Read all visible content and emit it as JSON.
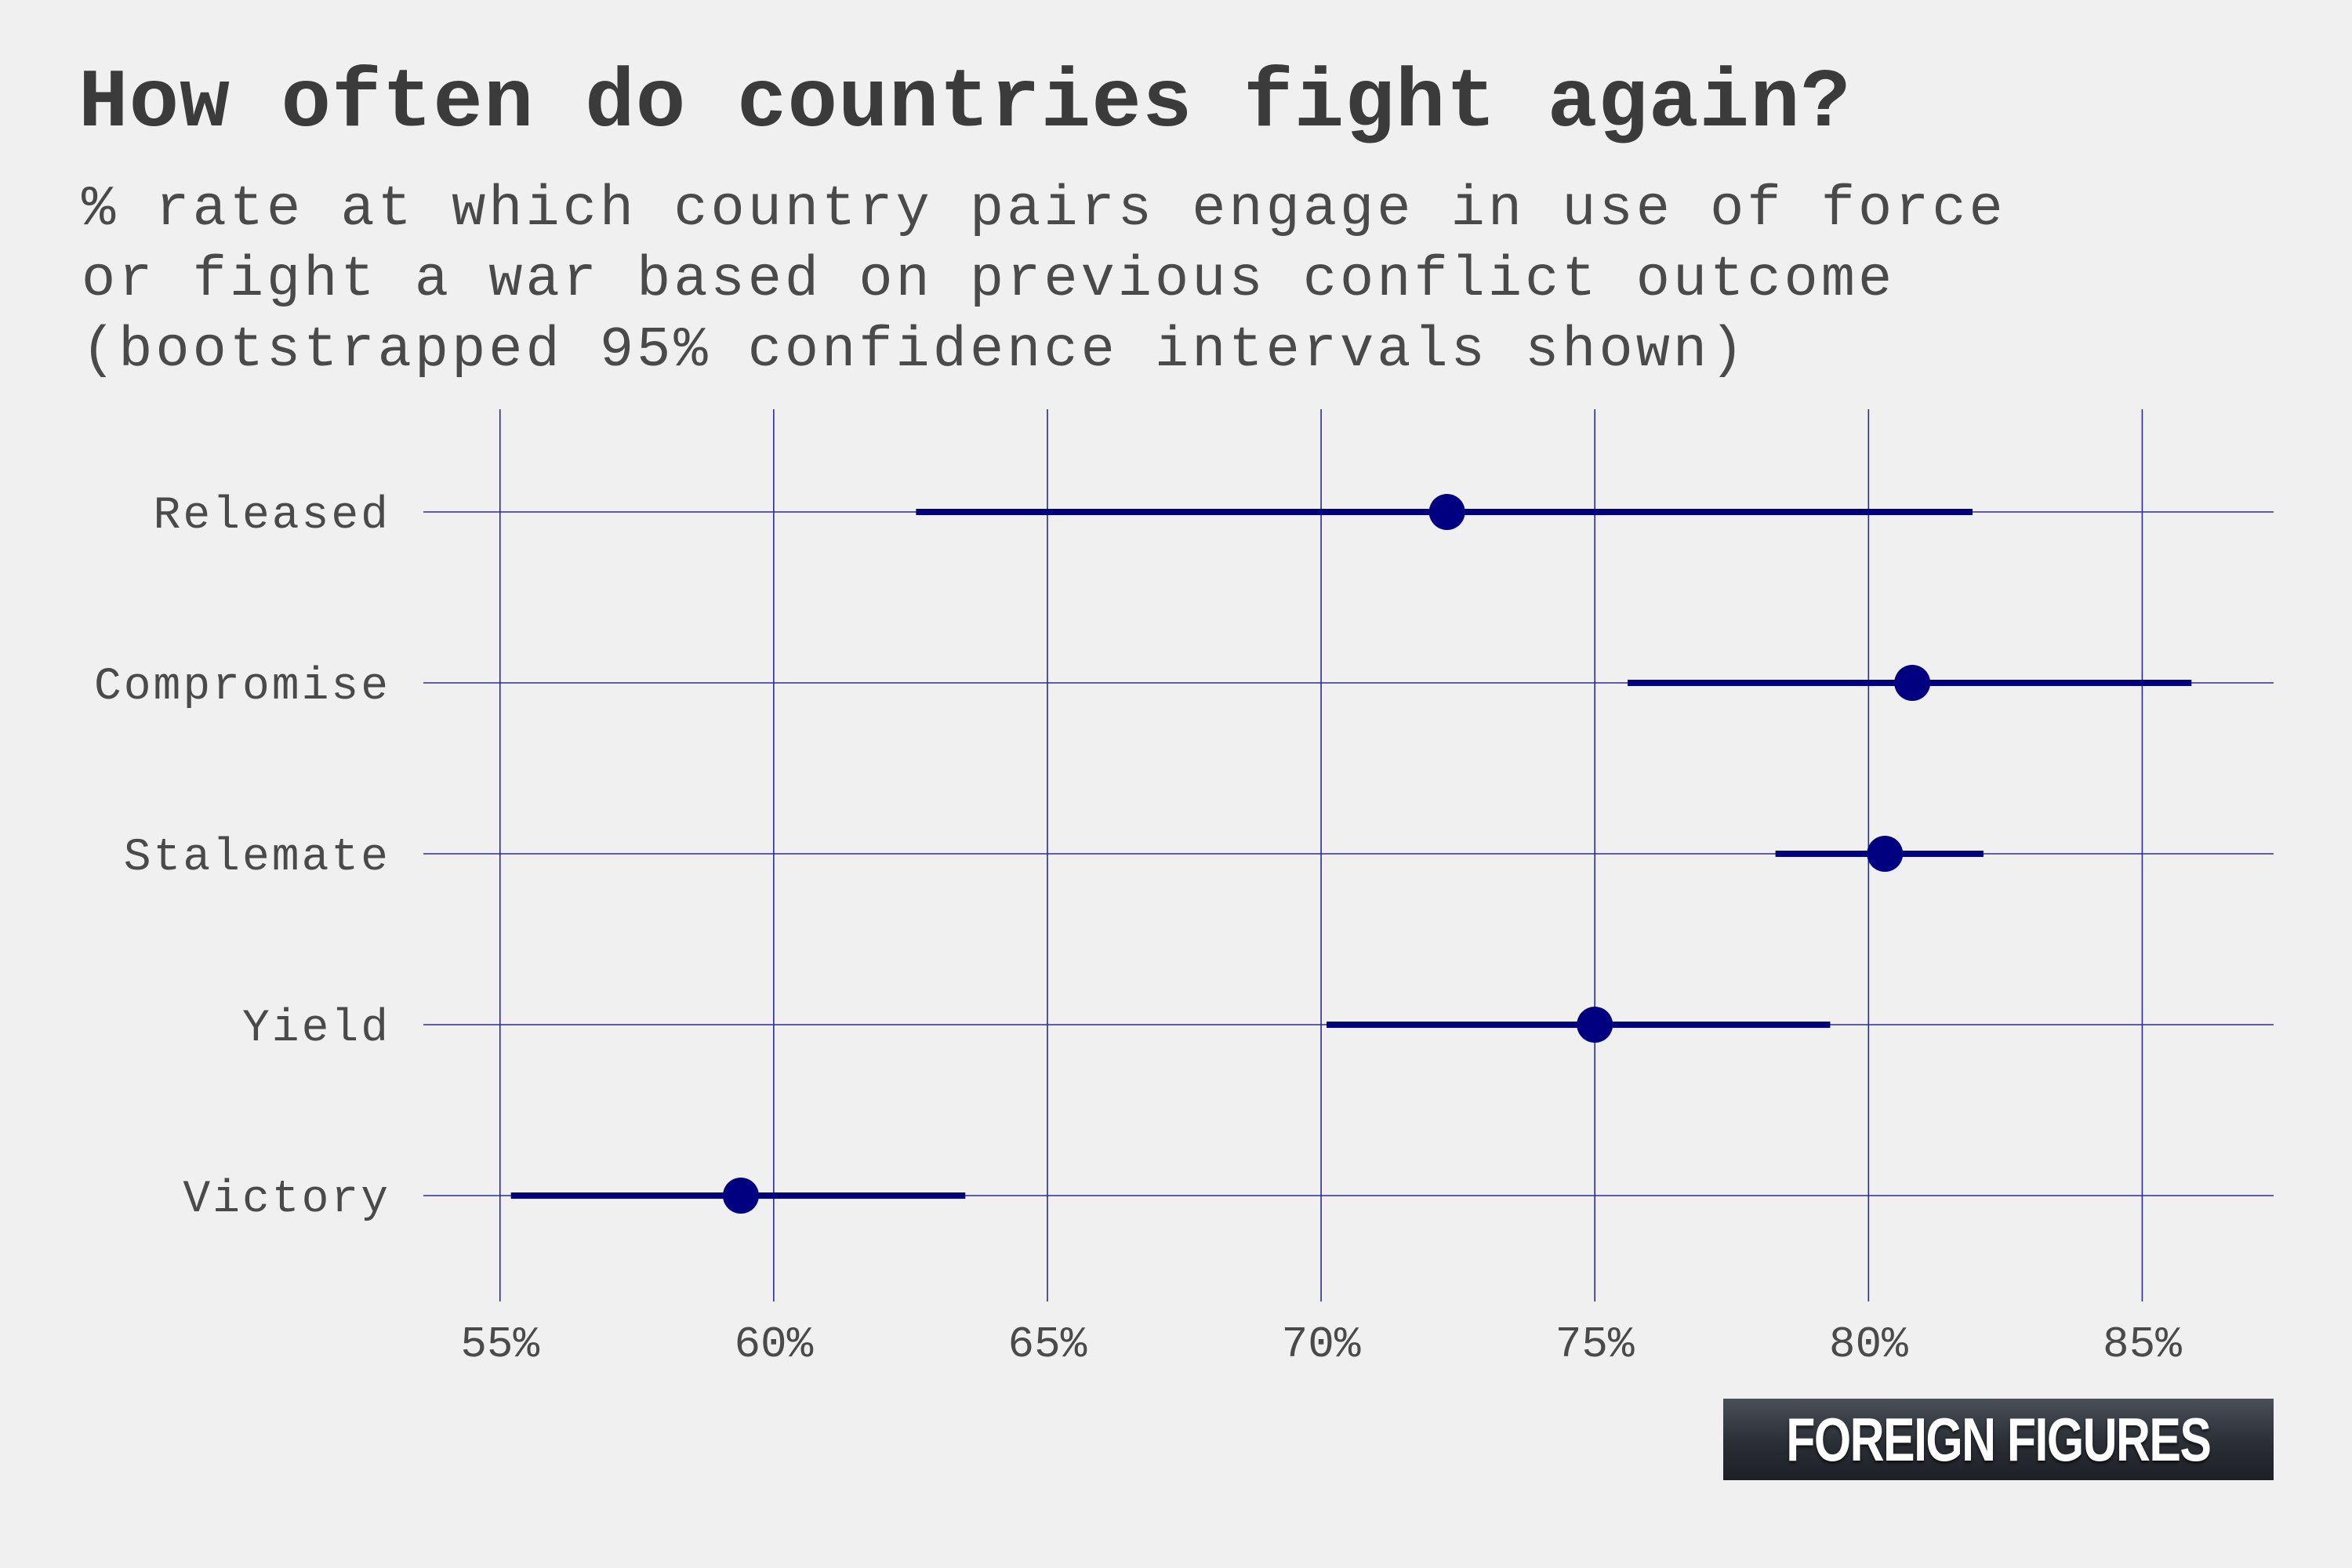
{
  "title": "How often do countries fight again?",
  "subtitle": "% rate at which country pairs engage in use of force\nor fight a war based on previous conflict outcome\n(bootstrapped 95% confidence intervals shown)",
  "logo_text": "FOREIGN FIGURES",
  "colors": {
    "point": "#000080",
    "grid": "#2a2a9a",
    "background": "#f0f0f0"
  },
  "chart_data": {
    "type": "scatter",
    "orientation": "horizontal",
    "categories": [
      "Released",
      "Compromise",
      "Stalemate",
      "Yield",
      "Victory"
    ],
    "values": [
      72.3,
      80.8,
      80.3,
      75.0,
      59.4
    ],
    "ci_low": [
      62.6,
      75.6,
      78.3,
      70.1,
      55.2
    ],
    "ci_high": [
      81.9,
      85.9,
      82.1,
      79.3,
      63.5
    ],
    "xlim": [
      53.6,
      87.4
    ],
    "xticks": [
      55,
      60,
      65,
      70,
      75,
      80,
      85
    ],
    "xtick_labels": [
      "55%",
      "60%",
      "65%",
      "70%",
      "75%",
      "80%",
      "85%"
    ],
    "grid": true,
    "legend": false
  }
}
